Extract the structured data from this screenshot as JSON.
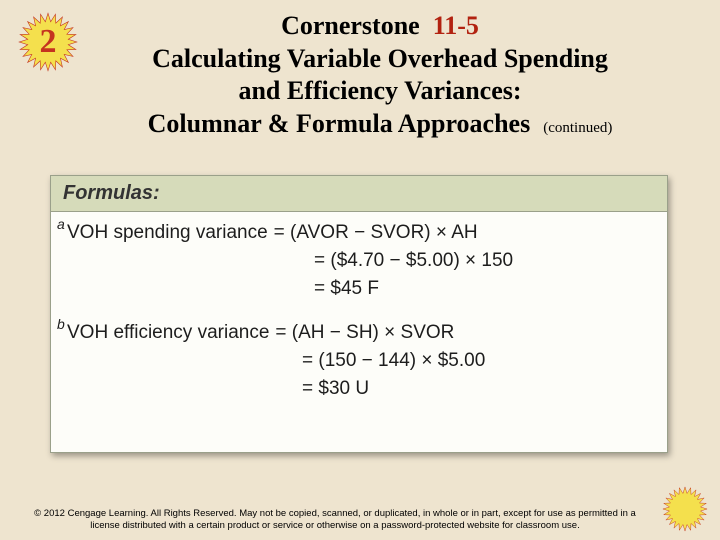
{
  "colors": {
    "slide_bg": "#eee4cf",
    "star_fill": "#f4e04d",
    "star_stroke": "#c5341f",
    "star_num_color": "#c5341f",
    "heading_color": "#000000",
    "cornerstone_num_color": "#b22210",
    "card_border": "#9aa08a",
    "card_head_bg": "#d6dbba",
    "card_head_text": "#333333",
    "card_body_bg": "#fdfdf9",
    "card_body_text": "#1d1d1d",
    "copyright_color": "#000000"
  },
  "starburst": {
    "points": 24,
    "outer_r": 48,
    "inner_r": 34,
    "number": "2"
  },
  "heading": {
    "cornerstone_label": "Cornerstone",
    "cornerstone_num": "11-5",
    "line2": "Calculating Variable Overhead Spending",
    "line3": "and Efficiency Variances:",
    "line4_main": "Columnar & Formula Approaches",
    "line4_cont": "(continued)"
  },
  "card": {
    "header": "Formulas:",
    "a": {
      "sup": "a",
      "lhs": "VOH spending variance",
      "r1": "= (AVOR − SVOR) × AH",
      "r2": "= ($4.70 − $5.00) × 150",
      "r3": "= $45 F"
    },
    "b": {
      "sup": "b",
      "lhs": "VOH efficiency variance",
      "r1": "= (AH − SH) × SVOR",
      "r2": "= (150 − 144) × $5.00",
      "r3": "= $30 U"
    }
  },
  "copyright": "© 2012 Cengage Learning. All Rights Reserved. May not be copied, scanned, or duplicated, in whole or in part, except for use as permitted in a license distributed with a certain product or service or otherwise on a password-protected website for classroom use."
}
